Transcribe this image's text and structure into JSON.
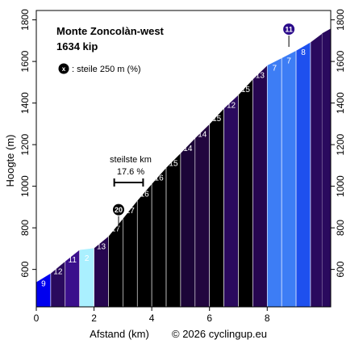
{
  "chart_data": {
    "type": "area",
    "title": "Monte Zoncolàn-west",
    "subtitle": "1634 kip",
    "xlabel": "Afstand (km)",
    "ylabel": "Hoogte (m)",
    "copyright": "© 2026 cyclingup.eu",
    "xlim": [
      0,
      10.2
    ],
    "ylim": [
      420,
      1845
    ],
    "x_ticks": [
      0,
      2,
      4,
      6,
      8
    ],
    "y_ticks": [
      600,
      800,
      1000,
      1200,
      1400,
      1600,
      1800
    ],
    "legend": {
      "symbol": "x",
      "text": ": steile 250 m (%)"
    },
    "steepest": {
      "label": "steilste km",
      "value": "17.6 %",
      "x_start": 2.7,
      "x_end": 3.7
    },
    "markers": [
      {
        "label": "20",
        "x": 2.85,
        "y": 802
      },
      {
        "label": "11",
        "x": 8.75,
        "y": 1670
      }
    ],
    "profile": [
      {
        "x": 0,
        "y": 540
      },
      {
        "x": 0.5,
        "y": 582
      },
      {
        "x": 1.0,
        "y": 640
      },
      {
        "x": 1.5,
        "y": 695
      },
      {
        "x": 2.0,
        "y": 703
      },
      {
        "x": 2.5,
        "y": 760
      },
      {
        "x": 3.0,
        "y": 845
      },
      {
        "x": 3.5,
        "y": 932
      },
      {
        "x": 4.0,
        "y": 1012
      },
      {
        "x": 4.5,
        "y": 1090
      },
      {
        "x": 5.0,
        "y": 1160
      },
      {
        "x": 5.5,
        "y": 1232
      },
      {
        "x": 6.0,
        "y": 1300
      },
      {
        "x": 6.5,
        "y": 1375
      },
      {
        "x": 7.0,
        "y": 1440
      },
      {
        "x": 7.5,
        "y": 1515
      },
      {
        "x": 8.0,
        "y": 1582
      },
      {
        "x": 8.5,
        "y": 1617
      },
      {
        "x": 9.0,
        "y": 1653
      },
      {
        "x": 9.5,
        "y": 1693
      },
      {
        "x": 9.9,
        "y": 1735
      }
    ],
    "segments": [
      {
        "label": "9",
        "color": "#0000ee"
      },
      {
        "label": "12",
        "color": "#2a0a5e"
      },
      {
        "label": "11",
        "color": "#3b0f8c"
      },
      {
        "label": "2",
        "color": "#aaf0ff"
      },
      {
        "label": "13",
        "color": "#260650"
      },
      {
        "label": "17",
        "color": "#000000"
      },
      {
        "label": "17",
        "color": "#000000"
      },
      {
        "label": "16",
        "color": "#000000"
      },
      {
        "label": "16",
        "color": "#000000"
      },
      {
        "label": "15",
        "color": "#000000"
      },
      {
        "label": "14",
        "color": "#1c0538"
      },
      {
        "label": "14",
        "color": "#22063f"
      },
      {
        "label": "15",
        "color": "#000000"
      },
      {
        "label": "12",
        "color": "#2a0a5e"
      },
      {
        "label": "15",
        "color": "#000000"
      },
      {
        "label": "13",
        "color": "#260650"
      },
      {
        "label": "7",
        "color": "#3d7df5"
      },
      {
        "label": "7",
        "color": "#3d7df5"
      },
      {
        "label": "8",
        "color": "#1e50ee"
      },
      {
        "label": "",
        "color": "#2a0a5e"
      }
    ]
  }
}
